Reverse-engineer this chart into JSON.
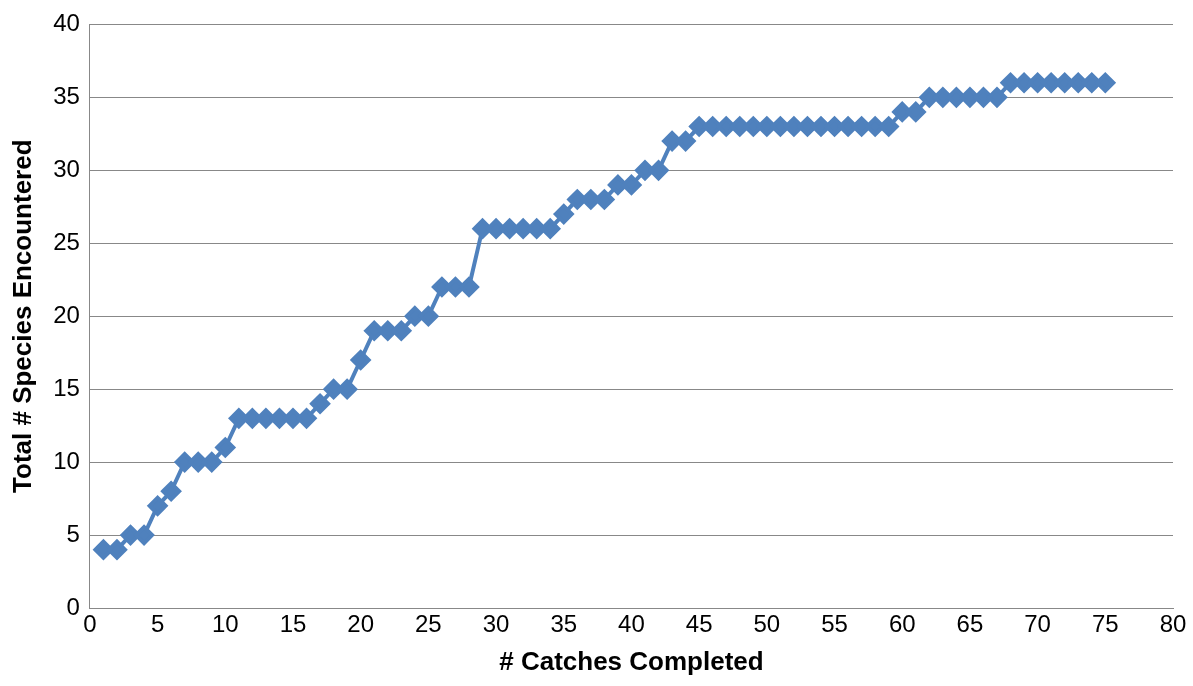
{
  "chart_data": {
    "type": "line",
    "xlabel": "# Catches Completed",
    "ylabel": "Total # Species Encountered",
    "x": [
      1,
      2,
      3,
      4,
      5,
      6,
      7,
      8,
      9,
      10,
      11,
      12,
      13,
      14,
      15,
      16,
      17,
      18,
      19,
      20,
      21,
      22,
      23,
      24,
      25,
      26,
      27,
      28,
      29,
      30,
      31,
      32,
      33,
      34,
      35,
      36,
      37,
      38,
      39,
      40,
      41,
      42,
      43,
      44,
      45,
      46,
      47,
      48,
      49,
      50,
      51,
      52,
      53,
      54,
      55,
      56,
      57,
      58,
      59,
      60,
      61,
      62,
      63,
      64,
      65,
      66,
      67,
      68,
      69,
      70,
      71,
      72,
      73,
      74,
      75
    ],
    "series": [
      {
        "color": "#4f81bd",
        "values": [
          4,
          4,
          5,
          5,
          7,
          8,
          10,
          10,
          10,
          11,
          13,
          13,
          13,
          13,
          13,
          13,
          14,
          15,
          15,
          17,
          19,
          19,
          19,
          20,
          20,
          22,
          22,
          22,
          26,
          26,
          26,
          26,
          26,
          26,
          27,
          28,
          28,
          28,
          29,
          29,
          30,
          30,
          32,
          32,
          33,
          33,
          33,
          33,
          33,
          33,
          33,
          33,
          33,
          33,
          33,
          33,
          33,
          33,
          33,
          34,
          34,
          35,
          35,
          35,
          35,
          35,
          35,
          36,
          36,
          36,
          36,
          36,
          36,
          36,
          36
        ]
      }
    ],
    "xlim": [
      0,
      80
    ],
    "xticks": [
      0,
      5,
      10,
      15,
      20,
      25,
      30,
      35,
      40,
      45,
      50,
      55,
      60,
      65,
      70,
      75,
      80
    ],
    "ylim": [
      0,
      40
    ],
    "yticks": [
      0,
      5,
      10,
      15,
      20,
      25,
      30,
      35,
      40
    ],
    "grid": "y",
    "legend": false,
    "marker": "diamond",
    "line_style": "solid"
  }
}
